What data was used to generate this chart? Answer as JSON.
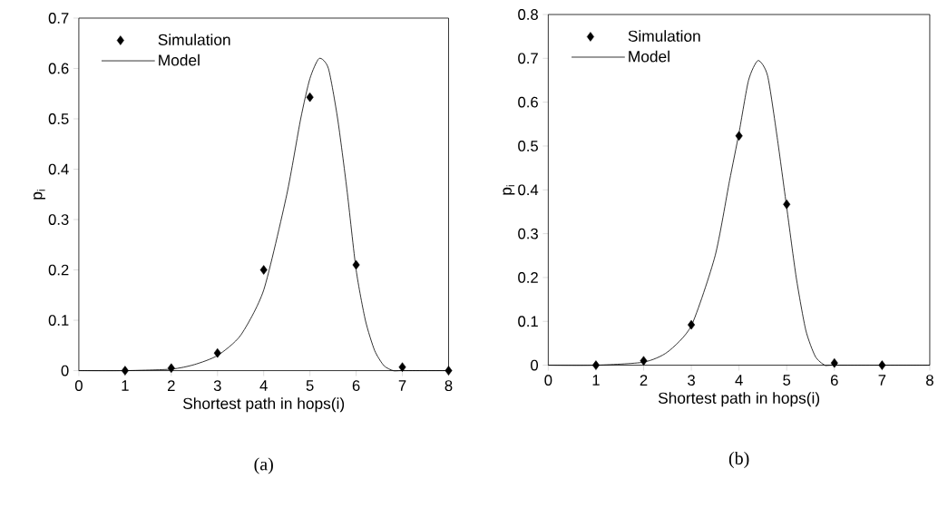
{
  "chart_data": [
    {
      "type": "line",
      "xlabel": "Shortest path in hops(i)",
      "ylabel": "p$_{i}$",
      "xlim": [
        0,
        8
      ],
      "xticks": [
        0,
        1,
        2,
        3,
        4,
        5,
        6,
        7,
        8
      ],
      "ylim": [
        0,
        0.7
      ],
      "yticks": [
        0,
        0.1,
        0.2,
        0.3,
        0.4,
        0.5,
        0.6,
        0.7
      ],
      "legend": "top left",
      "grid": false,
      "annotations": [
        "(a)"
      ],
      "series": [
        {
          "name": "Simulation",
          "type": "scatter",
          "marker": "diamond",
          "color": "#000000",
          "x": [
            1,
            2,
            3,
            4,
            5,
            6,
            7,
            8
          ],
          "values": [
            0,
            0.005,
            0.035,
            0.2,
            0.543,
            0.21,
            0.007,
            0
          ]
        },
        {
          "name": "Model",
          "marker": "none",
          "color": "#000000",
          "x": [
            0,
            1,
            2,
            2.5,
            3,
            3.5,
            4,
            4.5,
            4.8,
            5,
            5.2,
            5.4,
            5.6,
            5.8,
            6,
            6.2,
            6.4,
            6.6,
            6.8,
            7,
            8
          ],
          "values": [
            0,
            0,
            0.003,
            0.012,
            0.03,
            0.07,
            0.16,
            0.35,
            0.5,
            0.58,
            0.62,
            0.6,
            0.5,
            0.36,
            0.2,
            0.1,
            0.04,
            0.01,
            0,
            0,
            0
          ]
        }
      ]
    },
    {
      "type": "line",
      "xlabel": "Shortest path in hops(i)",
      "ylabel": "p$_{i}$",
      "xlim": [
        0,
        8
      ],
      "xticks": [
        0,
        1,
        2,
        3,
        4,
        5,
        6,
        7,
        8
      ],
      "ylim": [
        0,
        0.8
      ],
      "yticks": [
        0,
        0.1,
        0.2,
        0.3,
        0.4,
        0.5,
        0.6,
        0.7,
        0.8
      ],
      "legend": "top left",
      "grid": false,
      "annotations": [
        "(b)"
      ],
      "series": [
        {
          "name": "Simulation",
          "type": "scatter",
          "marker": "diamond",
          "color": "#000000",
          "x": [
            1,
            2,
            3,
            4,
            5,
            6,
            7
          ],
          "values": [
            0,
            0.01,
            0.092,
            0.523,
            0.367,
            0.005,
            0
          ]
        },
        {
          "name": "Model",
          "marker": "none",
          "color": "#000000",
          "x": [
            0,
            1,
            2,
            2.5,
            3,
            3.5,
            3.8,
            4,
            4.2,
            4.4,
            4.6,
            4.8,
            5,
            5.2,
            5.4,
            5.6,
            5.8,
            6,
            8
          ],
          "values": [
            0,
            0,
            0.007,
            0.03,
            0.09,
            0.25,
            0.42,
            0.53,
            0.65,
            0.695,
            0.66,
            0.52,
            0.36,
            0.2,
            0.08,
            0.02,
            0,
            0,
            0
          ]
        }
      ]
    }
  ]
}
